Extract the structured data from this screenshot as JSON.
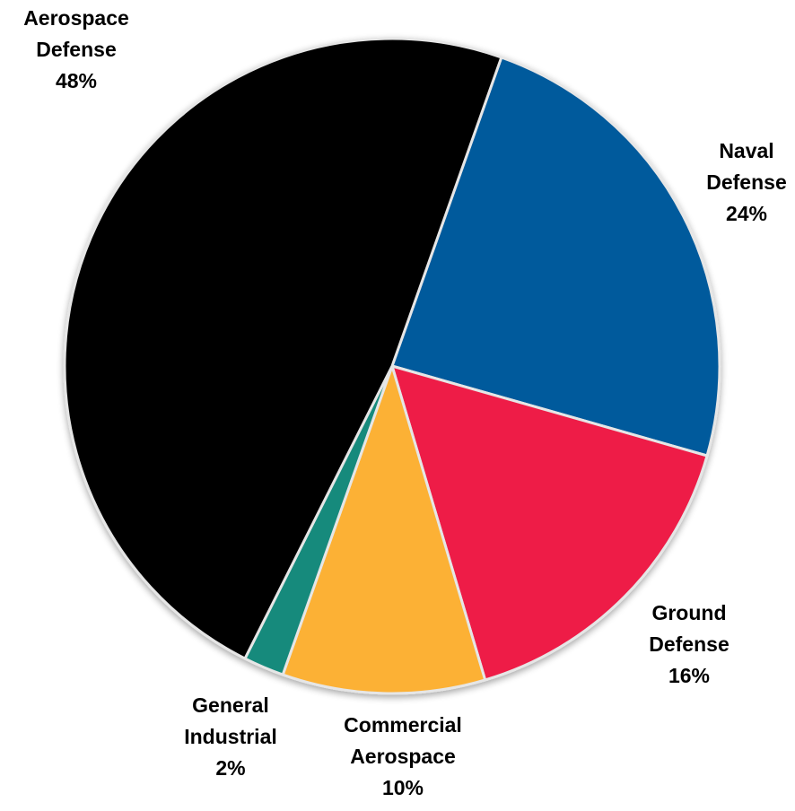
{
  "chart_data": {
    "type": "pie",
    "title": "",
    "slices": [
      {
        "label_lines": [
          "Naval",
          "Defense"
        ],
        "value": 24,
        "value_label": "24%",
        "color": "#035a9c"
      },
      {
        "label_lines": [
          "Ground",
          "Defense"
        ],
        "value": 16,
        "value_label": "16%",
        "color": "#ee1e47"
      },
      {
        "label_lines": [
          "Commercial",
          "Aerospace"
        ],
        "value": 10,
        "value_label": "10%",
        "color": "#fcb136"
      },
      {
        "label_lines": [
          "General",
          "Industrial"
        ],
        "value": 2,
        "value_label": "2%",
        "color": "#178a7b"
      },
      {
        "label_lines": [
          "Aerospace",
          "Defense"
        ],
        "value": 48,
        "value_label": "48%",
        "color": "#000000"
      }
    ],
    "start_direction": "clockwise from ~17 o'clock position",
    "legend": "none (direct labels)"
  }
}
